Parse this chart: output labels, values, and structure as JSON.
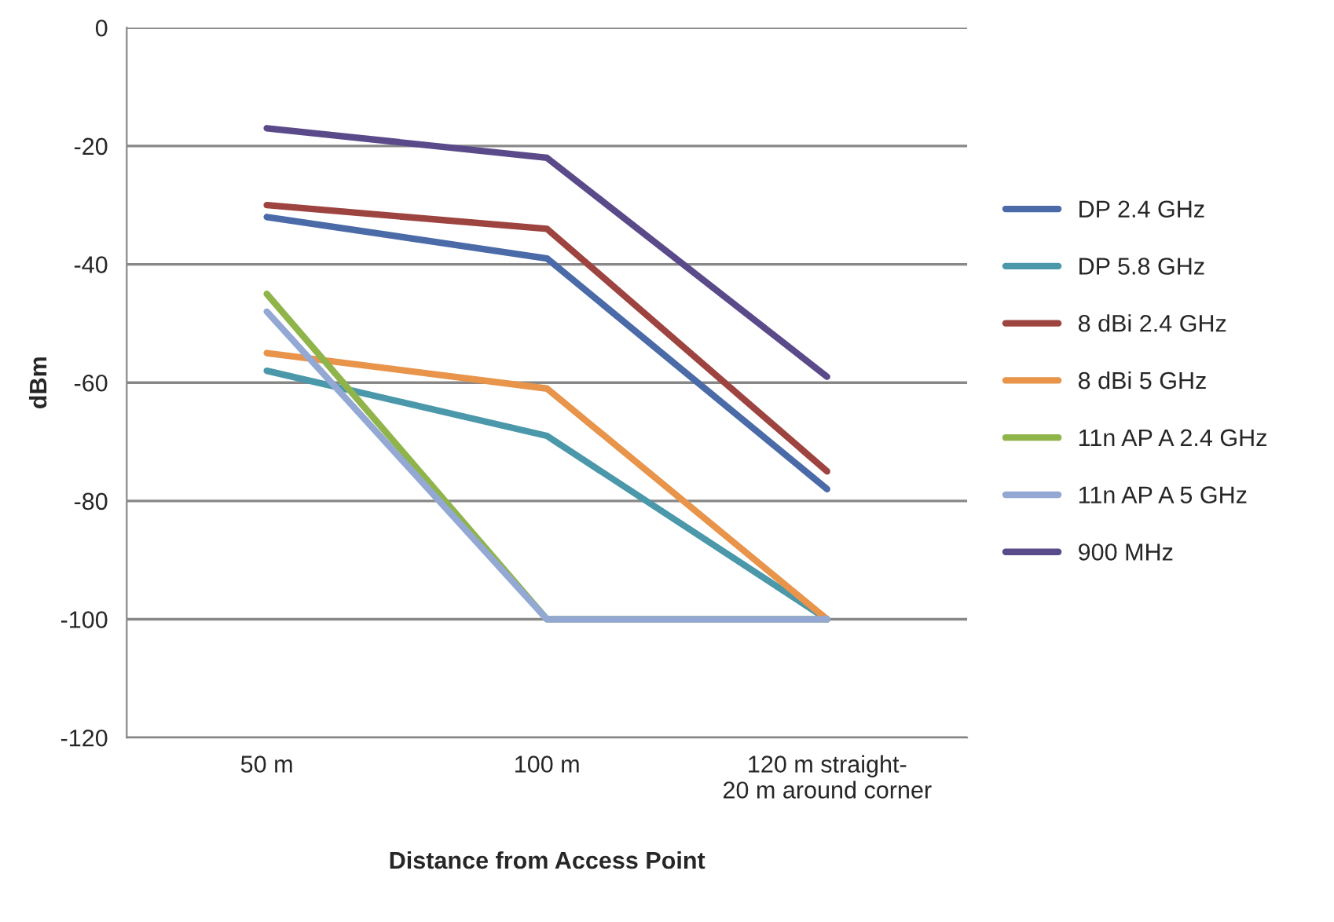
{
  "chart_data": {
    "type": "line",
    "xlabel": "Distance from Access Point",
    "ylabel": "dBm",
    "categories": [
      "50 m",
      "100 m",
      "120 m straight-\n20 m around corner"
    ],
    "ylim": [
      -120,
      0
    ],
    "yticks": [
      -120,
      -100,
      -80,
      -60,
      -40,
      -20,
      0
    ],
    "grid": "y",
    "legend": "right",
    "marker": "none",
    "line_style": "solid",
    "series": [
      {
        "name": "DP 2.4 GHz",
        "color": "#4a6aa8",
        "values": [
          -32,
          -39,
          -78
        ]
      },
      {
        "name": "DP 5.8 GHz",
        "color": "#4a98aa",
        "values": [
          -58,
          -69,
          -100
        ]
      },
      {
        "name": "8 dBi 2.4 GHz",
        "color": "#9e4440",
        "values": [
          -30,
          -34,
          -75
        ]
      },
      {
        "name": "8 dBi 5 GHz",
        "color": "#e8944a",
        "values": [
          -55,
          -61,
          -100
        ]
      },
      {
        "name": "11n AP A 2.4 GHz",
        "color": "#8fb44a",
        "values": [
          -45,
          -100,
          -100
        ]
      },
      {
        "name": "11n AP A 5 GHz",
        "color": "#94a8d4",
        "values": [
          -48,
          -100,
          -100
        ]
      },
      {
        "name": "900 MHz",
        "color": "#5a4a8a",
        "values": [
          -17,
          -22,
          -59
        ]
      }
    ]
  }
}
